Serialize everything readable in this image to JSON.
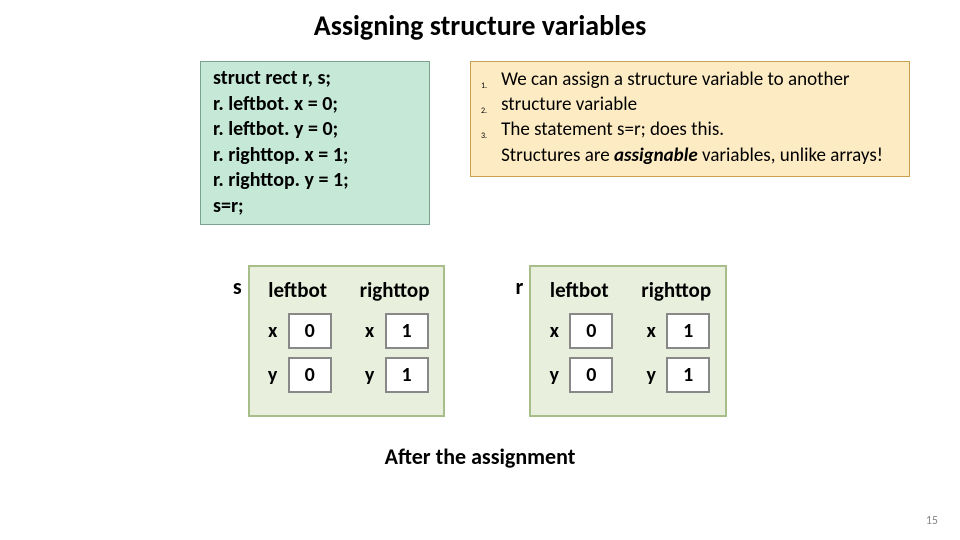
{
  "title": "Assigning structure variables",
  "code": {
    "lines": [
      "struct rect r, s;",
      "r. leftbot. x = 0;",
      "r. leftbot. y = 0;",
      "r. righttop. x = 1;",
      "r. righttop. y = 1;",
      "s=r;"
    ]
  },
  "notes": {
    "background": "#fcebc3",
    "border": "#c9a14e",
    "items": [
      "We can assign a structure variable to another structure variable",
      "The statement s=r; does this.",
      "Structures are <span class=\"em bold\">assignable</span> variables, unlike arrays!"
    ]
  },
  "colors": {
    "code_bg": "#c5e8d7",
    "struct_bg": "#e8f0dd",
    "struct_border": "#a7bd8a"
  },
  "structs": [
    {
      "name": "s",
      "fields": [
        {
          "label": "leftbot",
          "rows": [
            {
              "k": "x",
              "v": "0"
            },
            {
              "k": "y",
              "v": "0"
            }
          ]
        },
        {
          "label": "righttop",
          "rows": [
            {
              "k": "x",
              "v": "1"
            },
            {
              "k": "y",
              "v": "1"
            }
          ]
        }
      ]
    },
    {
      "name": "r",
      "fields": [
        {
          "label": "leftbot",
          "rows": [
            {
              "k": "x",
              "v": "0"
            },
            {
              "k": "y",
              "v": "0"
            }
          ]
        },
        {
          "label": "righttop",
          "rows": [
            {
              "k": "x",
              "v": "1"
            },
            {
              "k": "y",
              "v": "1"
            }
          ]
        }
      ]
    }
  ],
  "caption": "After the assignment",
  "page_number": "15"
}
